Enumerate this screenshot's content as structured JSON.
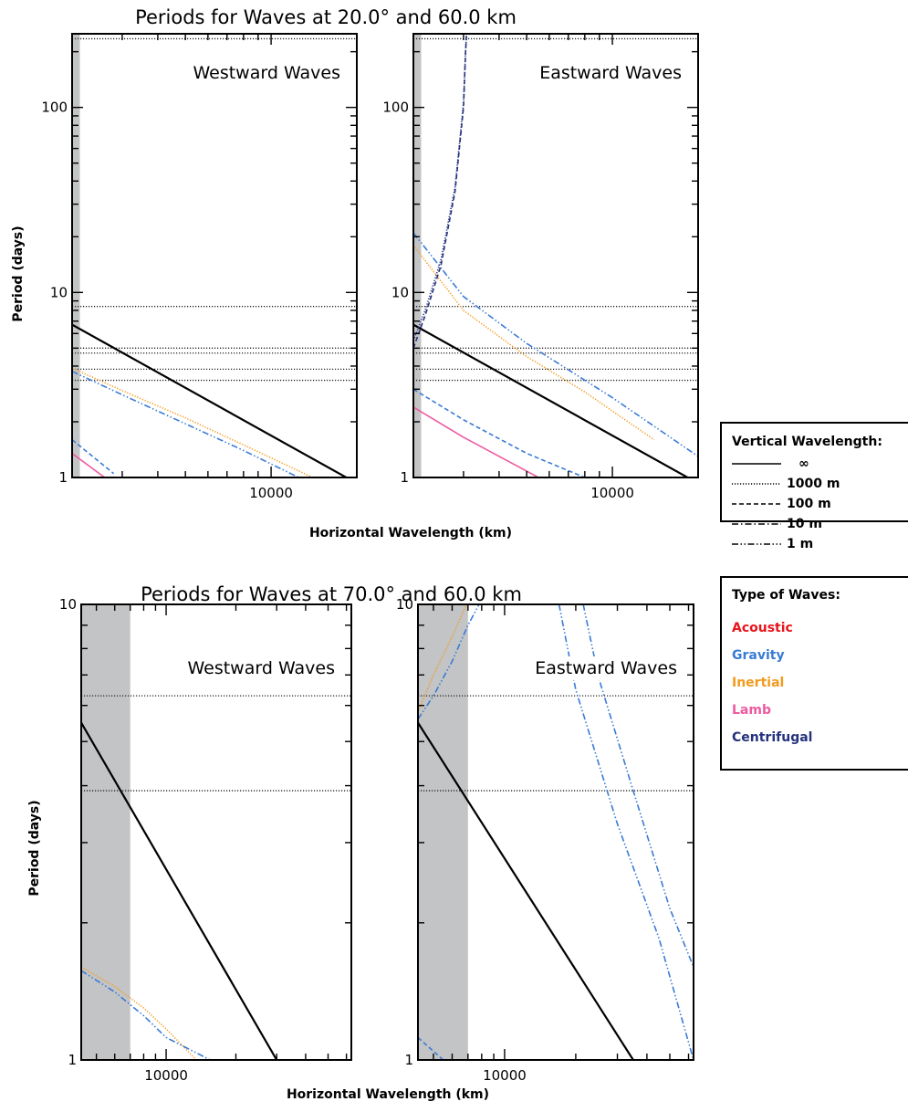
{
  "colors": {
    "acoustic": "#e8141c",
    "gravity": "#3a7bd5",
    "inertial": "#f39a1e",
    "lamb": "#ee5aa0",
    "centrifugal": "#25327d",
    "black": "#000000",
    "shade": "#c3c4c6"
  },
  "figures": [
    {
      "title": "Periods for Waves at 20.0° and 60.0 km",
      "xlabel": "Horizontal Wavelength (km)",
      "ylabel": "Period (days)",
      "xlim": [
        2000,
        20000
      ],
      "ylim": [
        1,
        250
      ],
      "log": true,
      "x_tick_labels": [
        "10000"
      ],
      "y_tick_labels": [
        "1",
        "10",
        "100"
      ],
      "shaded_max_x": 2130,
      "panels": [
        {
          "label": "Westward Waves",
          "hlines": [
            235,
            8.4,
            5.0,
            4.7,
            3.85,
            3.35
          ],
          "series": [
            {
              "wave_type": "inertial",
              "vertical_wavelength": "∞",
              "x": [
                2000,
                20000
              ],
              "y": [
                6.7,
                0.93
              ]
            },
            {
              "wave_type": "inertial",
              "vertical_wavelength": "1000 m",
              "x": [
                2000,
                3000,
                5000,
                8000,
                14000
              ],
              "y": [
                3.9,
                2.95,
                2.1,
                1.5,
                1.0
              ]
            },
            {
              "wave_type": "gravity",
              "vertical_wavelength": "1 m",
              "x": [
                2000,
                3000,
                5000,
                8000,
                12500
              ],
              "y": [
                3.75,
                2.8,
                1.95,
                1.4,
                1.0
              ]
            },
            {
              "wave_type": "gravity",
              "vertical_wavelength": "100 m",
              "x": [
                2000,
                2800
              ],
              "y": [
                1.6,
                1.05
              ]
            },
            {
              "wave_type": "lamb",
              "vertical_wavelength": "∞",
              "x": [
                2000,
                2600
              ],
              "y": [
                1.35,
                1.0
              ]
            }
          ]
        },
        {
          "label": "Eastward Waves",
          "hlines": [
            235,
            8.4,
            5.0,
            4.7,
            3.85,
            3.35
          ],
          "series": [
            {
              "wave_type": "inertial",
              "vertical_wavelength": "∞",
              "x": [
                2000,
                20000
              ],
              "y": [
                6.7,
                0.93
              ]
            },
            {
              "wave_type": "inertial",
              "vertical_wavelength": "1000 m",
              "x": [
                2000,
                3000,
                5000,
                8000,
                14000
              ],
              "y": [
                18,
                8,
                4.5,
                2.9,
                1.6
              ]
            },
            {
              "wave_type": "gravity",
              "vertical_wavelength": "1 m",
              "x": [
                2000,
                3000,
                5000,
                10000,
                20000
              ],
              "y": [
                21,
                9.5,
                5.3,
                2.7,
                1.3
              ]
            },
            {
              "wave_type": "gravity",
              "vertical_wavelength": "100 m",
              "x": [
                2000,
                3000,
                5000,
                8000
              ],
              "y": [
                3.0,
                2.05,
                1.35,
                1.0
              ]
            },
            {
              "wave_type": "lamb",
              "vertical_wavelength": "∞",
              "x": [
                2000,
                3000,
                5500
              ],
              "y": [
                2.4,
                1.65,
                1.0
              ]
            },
            {
              "wave_type": "centrifugal",
              "vertical_wavelength": "100 m",
              "x": [
                2000,
                2200,
                2500,
                2800,
                3000,
                3050,
                3080
              ],
              "y": [
                5.0,
                7.5,
                14,
                35,
                100,
                200,
                260
              ]
            },
            {
              "wave_type": "centrifugal",
              "vertical_wavelength": "1000 m",
              "x": [
                2000,
                2200,
                2500,
                2800,
                3000,
                3050,
                3080
              ],
              "y": [
                5.5,
                8.0,
                15,
                37,
                105,
                205,
                260
              ]
            }
          ]
        }
      ]
    },
    {
      "title": "Periods for Waves at 70.0° and 60.0 km",
      "xlabel": "Horizontal Wavelength (km)",
      "ylabel": "Period (days)",
      "xlim": [
        4300,
        63000
      ],
      "ylim": [
        1,
        10
      ],
      "log": true,
      "x_tick_labels": [
        "10000"
      ],
      "y_tick_labels": [
        "1",
        "10"
      ],
      "shaded_max_x": 7000,
      "panels": [
        {
          "label": "Westward Waves",
          "hlines": [
            6.3,
            3.9
          ],
          "series": [
            {
              "wave_type": "inertial",
              "vertical_wavelength": "∞",
              "x": [
                4300,
                30000
              ],
              "y": [
                5.5,
                1.0
              ]
            },
            {
              "wave_type": "inertial",
              "vertical_wavelength": "1000 m",
              "x": [
                4300,
                6000,
                8000,
                10000,
                13500
              ],
              "y": [
                1.6,
                1.45,
                1.3,
                1.17,
                1.0
              ]
            },
            {
              "wave_type": "gravity",
              "vertical_wavelength": "1 m",
              "x": [
                4300,
                6000,
                8000,
                10000,
                15500
              ],
              "y": [
                1.57,
                1.41,
                1.25,
                1.12,
                1.0
              ]
            }
          ]
        },
        {
          "label": "Eastward Waves",
          "hlines": [
            6.3,
            3.9
          ],
          "series": [
            {
              "wave_type": "inertial",
              "vertical_wavelength": "∞",
              "x": [
                4300,
                35000
              ],
              "y": [
                5.5,
                1.0
              ]
            },
            {
              "wave_type": "inertial",
              "vertical_wavelength": "1000 m",
              "x": [
                4300,
                5000,
                6000,
                6900
              ],
              "y": [
                5.8,
                7.0,
                8.5,
                10.0
              ]
            },
            {
              "wave_type": "gravity",
              "vertical_wavelength": "1 m",
              "x": [
                4300,
                5000,
                6000,
                7000,
                7800
              ],
              "y": [
                5.6,
                6.3,
                7.5,
                9.0,
                10.0
              ]
            },
            {
              "wave_type": "gravity",
              "vertical_wavelength": "1 m",
              "x": [
                17000,
                20000,
                30000,
                45000,
                63000
              ],
              "y": [
                10.0,
                6.5,
                3.3,
                1.85,
                1.0
              ]
            },
            {
              "wave_type": "gravity",
              "vertical_wavelength": "1 m",
              "x": [
                21500,
                25000,
                35000,
                50000,
                63000
              ],
              "y": [
                10.0,
                6.9,
                3.9,
                2.15,
                1.6
              ]
            },
            {
              "wave_type": "gravity",
              "vertical_wavelength": "100 m",
              "x": [
                4300,
                5500
              ],
              "y": [
                1.12,
                1.0
              ]
            }
          ]
        }
      ]
    }
  ],
  "legend_vertical": {
    "title": "Vertical Wavelength:",
    "items": [
      {
        "label": "∞",
        "dash": "solid"
      },
      {
        "label": "1000 m",
        "dash": "dotted"
      },
      {
        "label": "100 m",
        "dash": "dashed"
      },
      {
        "label": "10 m",
        "dash": "dashdot"
      },
      {
        "label": "1 m",
        "dash": "dashdotdot"
      }
    ]
  },
  "legend_types": {
    "title": "Type of Waves:",
    "items": [
      {
        "label": "Acoustic",
        "color_key": "acoustic"
      },
      {
        "label": "Gravity",
        "color_key": "gravity"
      },
      {
        "label": "Inertial",
        "color_key": "inertial"
      },
      {
        "label": "Lamb",
        "color_key": "lamb"
      },
      {
        "label": "Centrifugal",
        "color_key": "centrifugal"
      }
    ]
  },
  "chart_data": [
    {
      "type": "line",
      "title": "Periods for Waves at 20.0° and 60.0 km",
      "xlabel": "Horizontal Wavelength (km)",
      "ylabel": "Period (days)",
      "xlim": [
        2000,
        20000
      ],
      "ylim": [
        1,
        250
      ],
      "log_x": true,
      "log_y": true,
      "grid": false,
      "panels": [
        "Westward Waves",
        "Eastward Waves"
      ]
    },
    {
      "type": "line",
      "title": "Periods for Waves at 70.0° and 60.0 km",
      "xlabel": "Horizontal Wavelength (km)",
      "ylabel": "Period (days)",
      "xlim": [
        4300,
        63000
      ],
      "ylim": [
        1,
        10
      ],
      "log_x": true,
      "log_y": true,
      "grid": false,
      "panels": [
        "Westward Waves",
        "Eastward Waves"
      ]
    }
  ]
}
